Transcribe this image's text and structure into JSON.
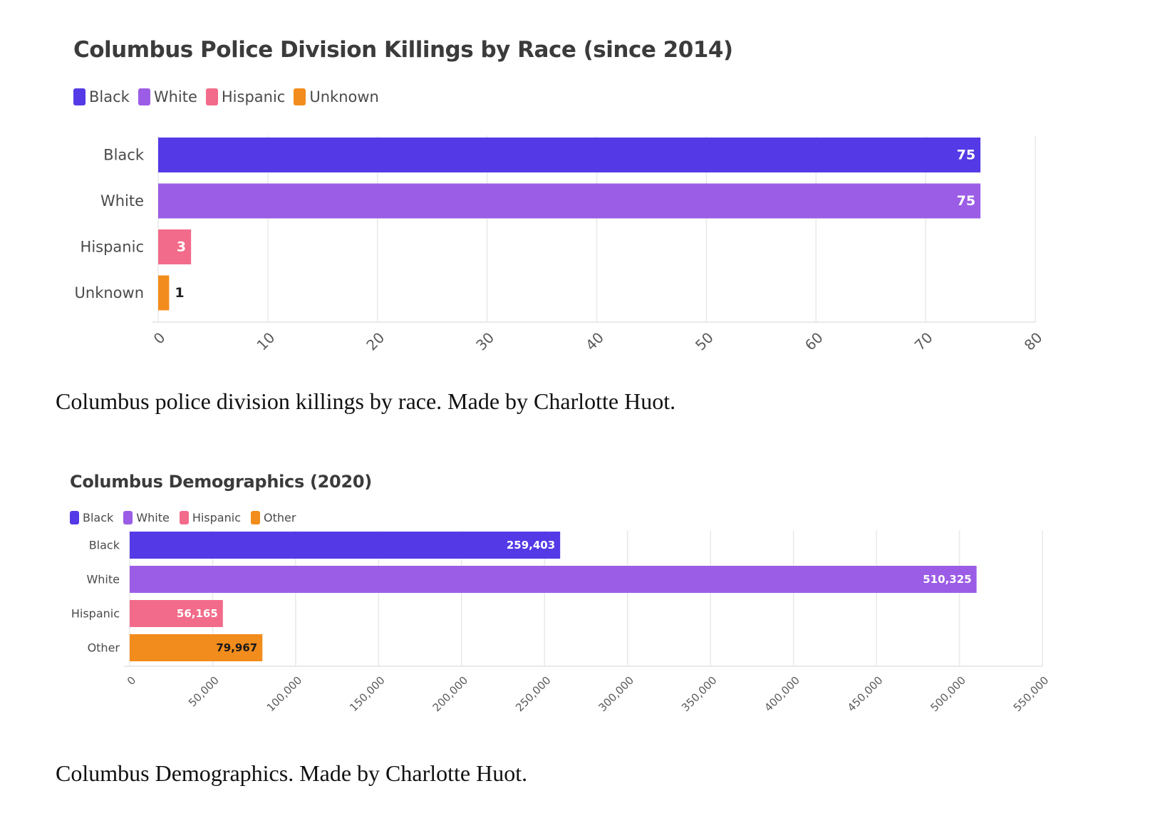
{
  "chart_data": [
    {
      "type": "bar",
      "orientation": "horizontal",
      "title": "Columbus Police Division Killings by Race (since 2014)",
      "categories": [
        "Black",
        "White",
        "Hispanic",
        "Unknown"
      ],
      "values": [
        75,
        75,
        3,
        1
      ],
      "value_labels": [
        "75",
        "75",
        "3",
        "1"
      ],
      "colors": [
        "#543ae6",
        "#9b5de5",
        "#f26b8a",
        "#f28c1c"
      ],
      "legend": [
        {
          "label": "Black",
          "color": "#543ae6"
        },
        {
          "label": "White",
          "color": "#9b5de5"
        },
        {
          "label": "Hispanic",
          "color": "#f26b8a"
        },
        {
          "label": "Unknown",
          "color": "#f28c1c"
        }
      ],
      "legend_position": "top-left",
      "xlim": [
        0,
        80
      ],
      "x_ticks": [
        0,
        10,
        20,
        30,
        40,
        50,
        60,
        70,
        80
      ],
      "x_tick_labels": [
        "0",
        "10",
        "20",
        "30",
        "40",
        "50",
        "60",
        "70",
        "80"
      ],
      "grid": true,
      "xlabel": "",
      "ylabel": ""
    },
    {
      "type": "bar",
      "orientation": "horizontal",
      "title": "Columbus Demographics (2020)",
      "categories": [
        "Black",
        "White",
        "Hispanic",
        "Other"
      ],
      "values": [
        259403,
        510325,
        56165,
        79967
      ],
      "value_labels": [
        "259,403",
        "510,325",
        "56,165",
        "79,967"
      ],
      "colors": [
        "#543ae6",
        "#9b5de5",
        "#f26b8a",
        "#f28c1c"
      ],
      "legend": [
        {
          "label": "Black",
          "color": "#543ae6"
        },
        {
          "label": "White",
          "color": "#9b5de5"
        },
        {
          "label": "Hispanic",
          "color": "#f26b8a"
        },
        {
          "label": "Other",
          "color": "#f28c1c"
        }
      ],
      "legend_position": "top-left",
      "xlim": [
        0,
        550000
      ],
      "x_ticks": [
        0,
        50000,
        100000,
        150000,
        200000,
        250000,
        300000,
        350000,
        400000,
        450000,
        500000,
        550000
      ],
      "x_tick_labels": [
        "0",
        "50,000",
        "100,000",
        "150,000",
        "200,000",
        "250,000",
        "300,000",
        "350,000",
        "400,000",
        "450,000",
        "500,000",
        "550,000"
      ],
      "grid": true,
      "xlabel": "",
      "ylabel": ""
    }
  ],
  "captions": [
    "Columbus police division killings by race. Made by Charlotte Huot.",
    "Columbus Demographics. Made by Charlotte Huot."
  ]
}
